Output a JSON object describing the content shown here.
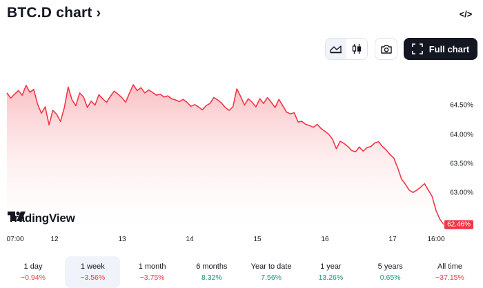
{
  "header": {
    "title": "BTC.D chart",
    "title_chevron": "›",
    "embed_icon": "code-brackets-icon",
    "embed_glyph": "</>"
  },
  "toolbar": {
    "area_icon": "area-chart-icon",
    "candle_icon": "candlestick-icon",
    "snapshot_icon": "camera-icon",
    "full_chart_label": "Full chart",
    "full_chart_icon": "fullscreen-icon"
  },
  "watermark": {
    "text": "TradingView",
    "icon": "tradingview-logo-icon"
  },
  "colors": {
    "line": "#f23645",
    "fill_top": "#f9b5ba",
    "fill_bottom": "#ffffff",
    "negative": "#f23645",
    "positive": "#089981",
    "text": "#131722"
  },
  "chart_data": {
    "type": "area",
    "title": "",
    "xlabel": "",
    "ylabel": "",
    "y_ticks": [
      "64.50%",
      "64.00%",
      "63.50%",
      "63.00%"
    ],
    "y_tick_values": [
      64.5,
      64.0,
      63.5,
      63.0
    ],
    "ylim": [
      62.35,
      65.05
    ],
    "x_ticks": [
      "07:00",
      "12",
      "13",
      "14",
      "15",
      "16",
      "17",
      "16:00"
    ],
    "last_value_label": "62.46%",
    "series": [
      {
        "values": [
          64.72,
          64.63,
          64.7,
          64.76,
          64.68,
          64.85,
          64.73,
          64.78,
          64.53,
          64.37,
          64.48,
          64.17,
          64.42,
          64.35,
          64.23,
          64.47,
          64.82,
          64.6,
          64.5,
          64.72,
          64.65,
          64.47,
          64.58,
          64.51,
          64.69,
          64.62,
          64.56,
          64.66,
          64.75,
          64.7,
          64.64,
          64.56,
          64.72,
          64.86,
          64.76,
          64.81,
          64.72,
          64.77,
          64.73,
          64.68,
          64.7,
          64.65,
          64.67,
          64.62,
          64.6,
          64.57,
          64.61,
          64.56,
          64.49,
          64.52,
          64.48,
          64.43,
          64.5,
          64.54,
          64.64,
          64.6,
          64.55,
          64.47,
          64.42,
          64.48,
          64.79,
          64.66,
          64.51,
          64.62,
          64.56,
          64.48,
          64.62,
          64.54,
          64.64,
          64.56,
          64.47,
          64.61,
          64.5,
          64.39,
          64.36,
          64.38,
          64.22,
          64.23,
          64.18,
          64.16,
          64.13,
          64.18,
          64.11,
          64.06,
          64.01,
          63.92,
          63.76,
          63.89,
          63.85,
          63.8,
          63.73,
          63.71,
          63.79,
          63.72,
          63.78,
          63.8,
          63.86,
          63.88,
          63.8,
          63.74,
          63.66,
          63.6,
          63.43,
          63.24,
          63.15,
          63.05,
          63.01,
          63.05,
          63.1,
          63.16,
          63.05,
          62.94,
          62.7,
          62.55,
          62.46
        ]
      }
    ],
    "grid": false,
    "legend": "none"
  },
  "periods": [
    {
      "label": "1 day",
      "value": "−0.94%",
      "sign": "neg",
      "active": false
    },
    {
      "label": "1 week",
      "value": "−3.56%",
      "sign": "neg",
      "active": true
    },
    {
      "label": "1 month",
      "value": "−3.75%",
      "sign": "neg",
      "active": false
    },
    {
      "label": "6 months",
      "value": "8.32%",
      "sign": "pos",
      "active": false
    },
    {
      "label": "Year to date",
      "value": "7.56%",
      "sign": "pos",
      "active": false
    },
    {
      "label": "1 year",
      "value": "13.26%",
      "sign": "pos",
      "active": false
    },
    {
      "label": "5 years",
      "value": "0.65%",
      "sign": "pos",
      "active": false
    },
    {
      "label": "All time",
      "value": "−37.15%",
      "sign": "neg",
      "active": false
    }
  ]
}
